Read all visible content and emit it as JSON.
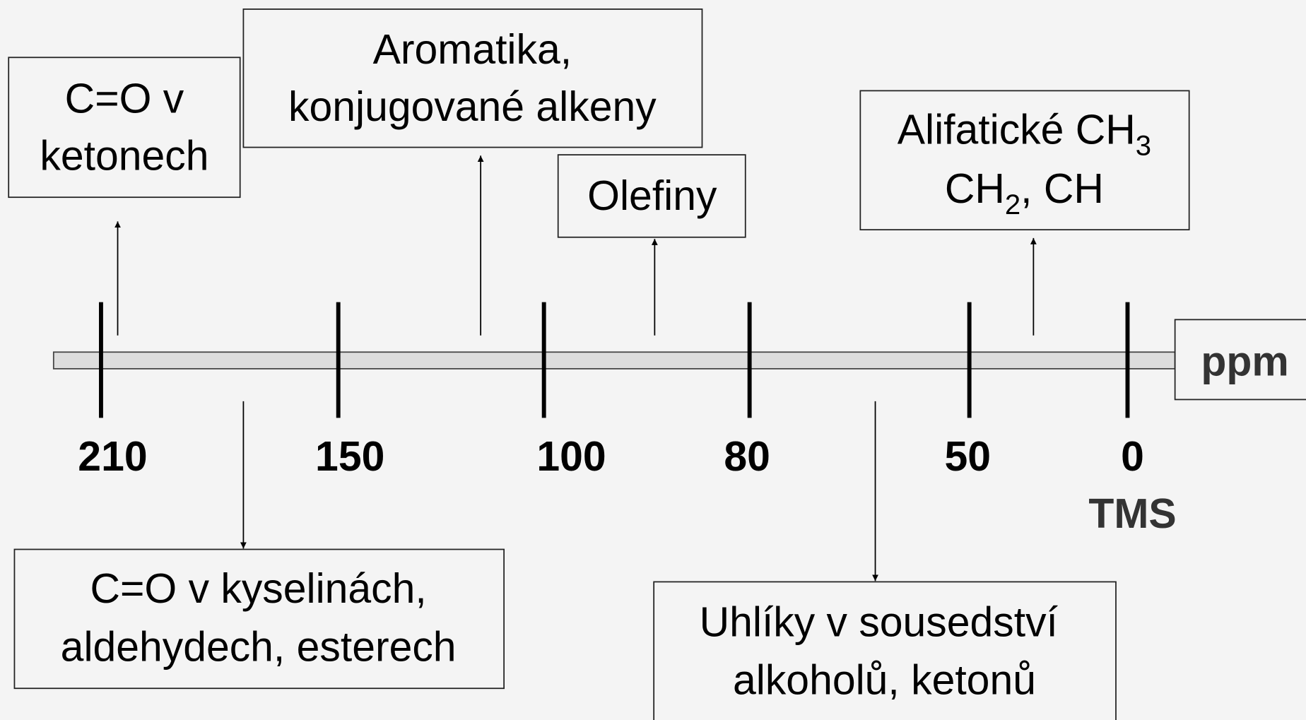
{
  "axis": {
    "ticks": [
      "210",
      "150",
      "100",
      "80",
      "50",
      "0"
    ],
    "reference": "TMS",
    "unit": "ppm"
  },
  "boxes": [
    {
      "lines": [
        "C=O v",
        "ketonech"
      ]
    },
    {
      "lines": [
        "Aromatika,",
        "konjugované alkeny"
      ]
    },
    {
      "lines": [
        "Olefiny"
      ]
    },
    {
      "lines": [
        [
          "Alifatické CH",
          "3"
        ],
        [
          "CH",
          "2",
          ", CH"
        ]
      ]
    },
    {
      "lines": [
        "C=O v kyselinách,",
        "aldehydech, esterech"
      ]
    },
    {
      "lines": [
        "Uhlíky v sousedství",
        "alkoholů, ketonů"
      ]
    }
  ]
}
